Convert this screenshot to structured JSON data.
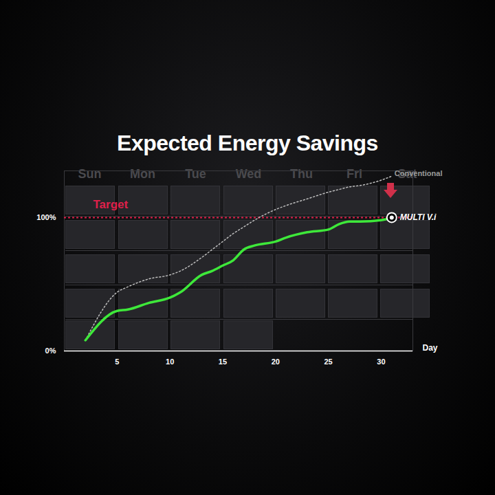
{
  "chart_data": {
    "type": "line",
    "title": "Expected Energy Savings",
    "weekdays": [
      "Sun",
      "Mon",
      "Tue",
      "Wed",
      "Thu",
      "Fri",
      "Sat"
    ],
    "x": [
      2,
      5,
      6,
      8,
      10,
      11,
      13,
      14,
      15,
      16,
      17,
      18,
      20,
      21,
      23,
      25,
      26,
      27,
      28,
      30,
      31
    ],
    "series": [
      {
        "name": "Conventional",
        "color": "#bdbdbd",
        "line_style": "dotted",
        "values": [
          8,
          44,
          48,
          54,
          57,
          60,
          70,
          76,
          82,
          88,
          93,
          98,
          106,
          109,
          114,
          119,
          121,
          123,
          124,
          128,
          131
        ]
      },
      {
        "name": "MULTI V.i",
        "color": "#3ee83a",
        "line_style": "solid",
        "values": [
          8,
          30,
          31,
          36,
          40,
          44,
          57,
          60,
          64,
          68,
          76,
          79,
          82,
          85,
          89,
          91,
          95,
          97,
          97,
          98,
          100
        ]
      }
    ],
    "target_value": 100,
    "target_label": "Target",
    "target_color": "#e0204a",
    "x_label": "Day",
    "xlim": [
      0,
      33
    ],
    "xticks": [
      5,
      10,
      15,
      20,
      25,
      30
    ],
    "ylim": [
      0,
      135
    ],
    "yticks": [
      {
        "value": 0,
        "label": "0%"
      },
      {
        "value": 100,
        "label": "100%"
      }
    ],
    "grid": false
  }
}
